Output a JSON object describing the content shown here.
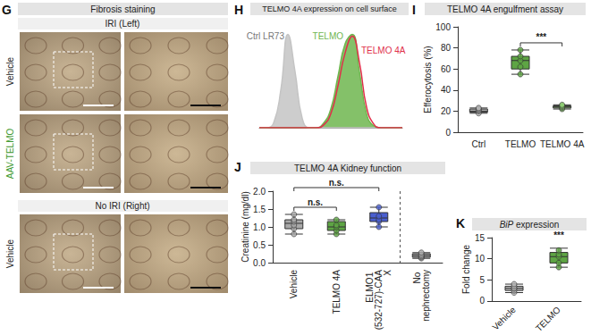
{
  "image_panel": {
    "panel": "G",
    "title": "Fibrosis staining",
    "sections": [
      {
        "label": "IRI (Left)",
        "rows": [
          "Vehicle",
          "AAV-TELMO"
        ]
      },
      {
        "label": "No IRI (Right)",
        "rows": [
          "Vehicle"
        ]
      }
    ]
  },
  "chart_data": [
    {
      "panel": "H",
      "title": "TELMO 4A expression on cell surface",
      "type": "line",
      "x": [
        0,
        5,
        10,
        15,
        20,
        25,
        30,
        35,
        40,
        45,
        50,
        55,
        60,
        65,
        70,
        75,
        80,
        85,
        90,
        95,
        100
      ],
      "series": [
        {
          "name": "Ctrl LR73",
          "color": "#c4c4c4",
          "type": "area",
          "values": [
            0,
            0,
            5,
            40,
            100,
            60,
            10,
            0,
            0,
            0,
            0,
            0,
            0,
            0,
            0,
            0,
            0,
            0,
            0,
            0,
            0
          ]
        },
        {
          "name": "TELMO",
          "color": "#6fb64f",
          "type": "area",
          "values": [
            0,
            0,
            0,
            0,
            0,
            0,
            0,
            0,
            0,
            5,
            20,
            55,
            90,
            100,
            60,
            15,
            2,
            0,
            0,
            0,
            0
          ]
        },
        {
          "name": "TELMO 4A",
          "color": "#e0304a",
          "type": "line",
          "values": [
            0,
            0,
            0,
            0,
            0,
            0,
            0,
            0,
            0,
            3,
            15,
            45,
            80,
            98,
            70,
            22,
            4,
            0,
            0,
            0,
            0
          ]
        }
      ],
      "xlim": [
        0,
        100
      ],
      "ylim": [
        0,
        110
      ],
      "tick_labels": false,
      "grid": false
    },
    {
      "panel": "I",
      "title": "TELMO 4A engulfment assay",
      "type": "boxplot",
      "categories": [
        "Ctrl",
        "TELMO",
        "TELMO 4A"
      ],
      "boxes": [
        [
          18,
          19,
          20,
          22,
          23
        ],
        [
          55,
          60,
          68,
          72,
          78
        ],
        [
          22,
          23,
          24,
          25,
          26
        ]
      ],
      "points": [
        [
          18,
          20,
          21,
          22,
          23
        ],
        [
          55,
          62,
          68,
          72,
          78
        ],
        [
          22,
          23,
          24,
          25,
          26
        ]
      ],
      "colors": [
        "#b5b5b5",
        "#5ea544",
        "#8fcf74"
      ],
      "y_label": "Efferocytosis (%)",
      "ylim": [
        0,
        100
      ],
      "yticks": [
        0,
        20,
        40,
        60,
        80,
        100
      ],
      "grid": false,
      "annotations": [
        {
          "text": "***",
          "from": "TELMO",
          "to": "TELMO 4A"
        }
      ]
    },
    {
      "panel": "J",
      "title": "TELMO 4A Kidney function",
      "type": "boxplot",
      "categories": [
        "Vehicle",
        "TELMO 4A",
        "ELMO1 (532-727)-CAAX",
        "No nephrectomy"
      ],
      "boxes": [
        [
          0.8,
          0.95,
          1.1,
          1.2,
          1.35
        ],
        [
          0.8,
          0.9,
          1.0,
          1.15,
          1.2
        ],
        [
          1.0,
          1.15,
          1.25,
          1.4,
          1.55
        ],
        [
          0.12,
          0.15,
          0.2,
          0.25,
          0.28
        ]
      ],
      "points": [
        [
          0.8,
          0.95,
          1.05,
          1.15,
          1.2,
          1.35
        ],
        [
          0.8,
          0.9,
          1.0,
          1.05,
          1.2
        ],
        [
          1.0,
          1.15,
          1.2,
          1.3,
          1.55
        ],
        [
          0.12,
          0.15,
          0.18,
          0.22,
          0.28
        ]
      ],
      "colors": [
        "#a9a9a9",
        "#5ea544",
        "#4a5fd0",
        "#a9a9a9"
      ],
      "y_label": "Creatinine (mg/dl)",
      "ylim": [
        0,
        2
      ],
      "yticks": [
        {
          "value": 0,
          "label": "0.0"
        },
        0.5,
        {
          "value": 1,
          "label": "1.0"
        },
        1.5,
        {
          "value": 2,
          "label": "2.0"
        }
      ],
      "grid": false,
      "annotations": [
        {
          "text": "n.s.",
          "from": "Vehicle",
          "to": "TELMO 4A"
        },
        {
          "text": "n.s.",
          "from": "Vehicle",
          "to": "ELMO1 (532-727)-CAAX"
        }
      ]
    },
    {
      "panel": "K",
      "title": "BiP expression",
      "type": "boxplot",
      "categories": [
        "Vehicle",
        "TELMO"
      ],
      "boxes": [
        [
          2,
          2.5,
          3,
          3.5,
          4
        ],
        [
          8,
          9,
          10.5,
          11.5,
          12.5
        ]
      ],
      "points": [
        [
          2,
          2.5,
          3,
          3,
          3.5,
          4
        ],
        [
          8,
          9,
          10.5,
          11,
          12
        ]
      ],
      "colors": [
        "#b5b5b5",
        "#5ea544"
      ],
      "y_label": "Fold change",
      "ylim": [
        0,
        15
      ],
      "yticks": [
        0,
        5,
        10,
        15
      ],
      "grid": false,
      "annotations": [
        {
          "text": "***",
          "from": "TELMO",
          "to": "TELMO"
        }
      ]
    }
  ]
}
